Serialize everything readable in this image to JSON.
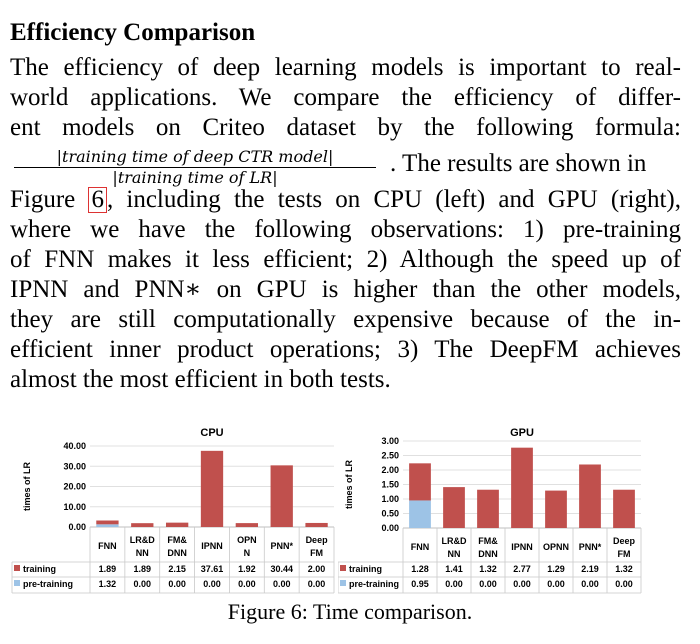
{
  "section_title": "Efficiency Comparison",
  "paragraph_lines": [
    "The efficiency of deep learning models is important to real-",
    "world applications.  We compare the efficiency of differ-",
    "ent models on Criteo dataset by the following formula:"
  ],
  "formula": {
    "numerator": "|training time of deep CTR model|",
    "denominator": "|training time of LR|",
    "after_text": ". The results are shown in"
  },
  "continuation": {
    "line1_before": "Figure ",
    "figure_ref": "6",
    "line1_after": ", including the tests on CPU (left) and GPU (right),",
    "lines": [
      "where we have the following observations:  1) pre-training",
      "of FNN makes it less efficient; 2) Although the speed up of",
      "IPNN and PNN∗ on GPU is higher than the other models,",
      "they are still computationally expensive because of the in-",
      "efficient inner product operations; 3) The DeepFM achieves",
      "almost the most efficient in both tests."
    ]
  },
  "caption": "Figure 6: Time comparison.",
  "colors": {
    "training": "#c0504d",
    "pre_training": "#9dc3e6"
  },
  "chart_data": [
    {
      "type": "bar",
      "stacked": true,
      "title": "CPU",
      "ylabel": "times of LR",
      "ylim": [
        0,
        40
      ],
      "yticks": [
        "0.00",
        "10.00",
        "20.00",
        "30.00",
        "40.00"
      ],
      "ytick_values": [
        0,
        10,
        20,
        30,
        40
      ],
      "categories": [
        [
          "FNN"
        ],
        [
          "LR&D",
          "NN"
        ],
        [
          "FM&",
          "DNN"
        ],
        [
          "IPNN"
        ],
        [
          "OPN",
          "N"
        ],
        [
          "PNN*"
        ],
        [
          "Deep",
          "FM"
        ]
      ],
      "series": [
        {
          "name": "training",
          "values": [
            1.89,
            1.89,
            2.15,
            37.61,
            1.92,
            30.44,
            2.0
          ],
          "labels": [
            "1.89",
            "1.89",
            "2.15",
            "37.61",
            "1.92",
            "30.44",
            "2.00"
          ]
        },
        {
          "name": "pre-training",
          "values": [
            1.32,
            0,
            0,
            0,
            0,
            0,
            0
          ],
          "labels": [
            "1.32",
            "0.00",
            "0.00",
            "0.00",
            "0.00",
            "0.00",
            "0.00"
          ]
        }
      ],
      "legend": "table-below"
    },
    {
      "type": "bar",
      "stacked": true,
      "title": "GPU",
      "ylabel": "times of LR",
      "ylim": [
        0,
        3
      ],
      "yticks": [
        "0.00",
        "0.50",
        "1.00",
        "1.50",
        "2.00",
        "2.50",
        "3.00"
      ],
      "ytick_values": [
        0,
        0.5,
        1,
        1.5,
        2,
        2.5,
        3
      ],
      "categories": [
        [
          "FNN"
        ],
        [
          "LR&D",
          "NN"
        ],
        [
          "FM&",
          "DNN"
        ],
        [
          "IPNN"
        ],
        [
          "OPNN"
        ],
        [
          "PNN*"
        ],
        [
          "Deep",
          "FM"
        ]
      ],
      "series": [
        {
          "name": "training",
          "values": [
            1.28,
            1.41,
            1.32,
            2.77,
            1.29,
            2.19,
            1.32
          ],
          "labels": [
            "1.28",
            "1.41",
            "1.32",
            "2.77",
            "1.29",
            "2.19",
            "1.32"
          ]
        },
        {
          "name": "pre-training",
          "values": [
            0.95,
            0,
            0,
            0,
            0,
            0,
            0
          ],
          "labels": [
            "0.95",
            "0.00",
            "0.00",
            "0.00",
            "0.00",
            "0.00",
            "0.00"
          ]
        }
      ],
      "legend": "table-below"
    }
  ]
}
